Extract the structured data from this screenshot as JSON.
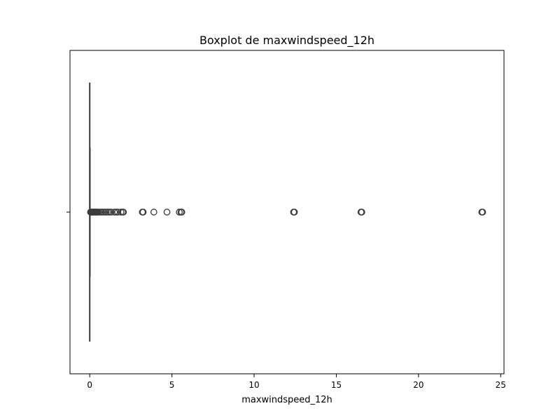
{
  "chart_data": {
    "type": "box",
    "title": "Boxplot de maxwindspeed_12h",
    "xlabel": "maxwindspeed_12h",
    "ylabel": "",
    "xlim": [
      -1.2,
      25.2
    ],
    "x_ticks": [
      0,
      5,
      10,
      15,
      20,
      25
    ],
    "x_tick_labels": [
      "0",
      "5",
      "10",
      "15",
      "20",
      "25"
    ],
    "box": {
      "min": 0.0,
      "q1": 0.0,
      "median": 0.0,
      "q3": 0.0,
      "max": 0.0
    },
    "outliers": [
      0.05,
      0.1,
      0.15,
      0.2,
      0.25,
      0.3,
      0.35,
      0.4,
      0.45,
      0.5,
      0.6,
      0.7,
      0.8,
      0.9,
      1.0,
      1.1,
      1.2,
      1.3,
      1.5,
      1.6,
      1.7,
      1.9,
      2.0,
      2.05,
      3.2,
      3.25,
      3.9,
      4.7,
      5.45,
      5.55,
      5.6,
      12.4,
      12.45,
      16.5,
      16.55,
      23.85,
      23.9
    ],
    "colors": {
      "axes": "#000000",
      "box_line": "#3b3b3b",
      "outlier_edge": "#3b3b3b"
    },
    "grid": false
  }
}
